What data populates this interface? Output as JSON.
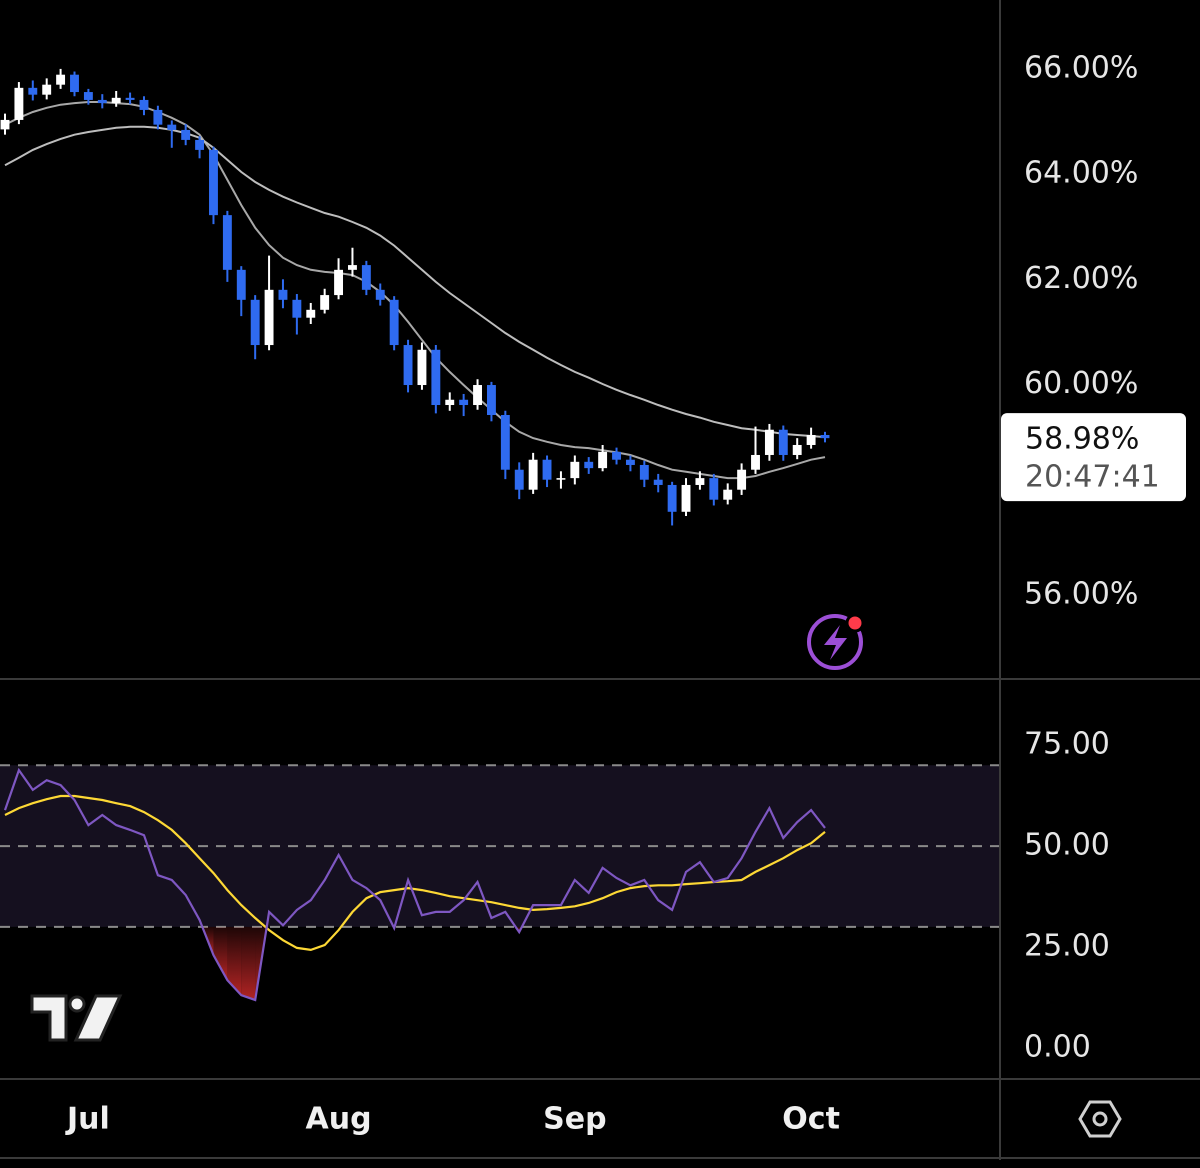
{
  "chart_data": [
    {
      "type": "candlestick",
      "categories": [
        null,
        null,
        null,
        null,
        null,
        null,
        "Jul",
        null,
        null,
        null,
        null,
        null,
        null,
        null,
        null,
        null,
        null,
        null,
        null,
        null,
        null,
        null,
        null,
        null,
        "Aug",
        null,
        null,
        null,
        null,
        null,
        null,
        null,
        null,
        null,
        null,
        null,
        null,
        null,
        null,
        null,
        null,
        "Sep",
        null,
        null,
        null,
        null,
        null,
        null,
        null,
        null,
        null,
        null,
        null,
        null,
        null,
        null,
        null,
        null,
        "Oct",
        null
      ],
      "open": [
        64.85,
        65.03,
        65.64,
        65.51,
        65.7,
        65.89,
        65.56,
        65.41,
        65.35,
        65.45,
        65.41,
        65.22,
        64.94,
        64.84,
        64.65,
        64.46,
        63.22,
        62.18,
        61.61,
        60.75,
        61.8,
        61.61,
        61.27,
        61.42,
        61.7,
        62.18,
        62.27,
        61.8,
        61.61,
        60.75,
        59.99,
        60.66,
        59.61,
        59.71,
        59.61,
        59.99,
        59.42,
        58.38,
        58.0,
        58.57,
        58.19,
        58.22,
        58.53,
        58.41,
        58.72,
        58.57,
        58.47,
        58.19,
        58.09,
        57.58,
        58.09,
        58.22,
        57.81,
        58.0,
        58.38,
        58.66,
        59.14,
        58.66,
        58.85,
        59.04
      ],
      "high": [
        65.15,
        65.75,
        65.78,
        65.82,
        66.0,
        65.95,
        65.62,
        65.52,
        65.58,
        65.55,
        65.48,
        65.3,
        65.02,
        64.95,
        64.72,
        64.52,
        63.3,
        62.25,
        61.7,
        62.45,
        62.0,
        61.72,
        61.55,
        61.82,
        62.4,
        62.6,
        62.35,
        61.92,
        61.68,
        60.85,
        60.8,
        60.75,
        59.85,
        59.82,
        60.1,
        60.05,
        59.5,
        58.52,
        58.7,
        58.65,
        58.35,
        58.65,
        58.62,
        58.85,
        58.8,
        58.65,
        58.55,
        58.3,
        58.15,
        58.22,
        58.35,
        58.3,
        58.12,
        58.5,
        59.2,
        59.25,
        59.22,
        58.98,
        59.18,
        59.1
      ],
      "low": [
        64.75,
        64.95,
        65.4,
        65.42,
        65.62,
        65.48,
        65.32,
        65.25,
        65.28,
        65.33,
        65.12,
        64.85,
        64.5,
        64.55,
        64.3,
        63.05,
        61.95,
        61.3,
        60.48,
        60.65,
        61.45,
        60.95,
        61.15,
        61.35,
        61.62,
        62.05,
        61.7,
        61.5,
        60.65,
        59.85,
        59.9,
        59.45,
        59.5,
        59.4,
        59.52,
        59.3,
        58.2,
        57.82,
        57.92,
        58.05,
        58.02,
        58.1,
        58.3,
        58.35,
        58.48,
        58.35,
        58.05,
        57.95,
        57.32,
        57.5,
        58.0,
        57.7,
        57.72,
        57.9,
        58.3,
        58.55,
        58.55,
        58.58,
        58.78,
        58.9
      ],
      "close": [
        65.03,
        65.64,
        65.51,
        65.7,
        65.89,
        65.56,
        65.41,
        65.35,
        65.45,
        65.41,
        65.22,
        64.94,
        64.84,
        64.65,
        64.46,
        63.22,
        62.18,
        61.61,
        60.75,
        61.8,
        61.61,
        61.27,
        61.42,
        61.7,
        62.18,
        62.27,
        61.8,
        61.61,
        60.75,
        59.99,
        60.66,
        59.61,
        59.71,
        59.61,
        59.99,
        59.42,
        58.38,
        58.0,
        58.57,
        58.19,
        58.22,
        58.53,
        58.41,
        58.72,
        58.57,
        58.47,
        58.19,
        58.09,
        57.58,
        58.09,
        58.22,
        57.81,
        58.0,
        58.38,
        58.66,
        59.14,
        58.66,
        58.85,
        59.04,
        58.98
      ],
      "up_color": "#ffffff",
      "down_color": "#2f6bf0",
      "overlays": [
        {
          "color": "#a8a8a8",
          "values": [
            64.94,
            65.07,
            65.18,
            65.26,
            65.32,
            65.35,
            65.37,
            65.37,
            65.35,
            65.33,
            65.28,
            65.18,
            65.07,
            64.94,
            64.75,
            64.37,
            63.89,
            63.41,
            62.98,
            62.65,
            62.41,
            62.27,
            62.18,
            62.14,
            62.12,
            62.08,
            61.95,
            61.76,
            61.51,
            61.19,
            60.85,
            60.51,
            60.24,
            59.99,
            59.75,
            59.52,
            59.29,
            59.1,
            58.98,
            58.91,
            58.85,
            58.81,
            58.79,
            58.75,
            58.71,
            58.66,
            58.57,
            58.47,
            58.38,
            58.34,
            58.3,
            58.26,
            58.22,
            58.22,
            58.26,
            58.34,
            58.41,
            58.49,
            58.57,
            58.62
          ]
        },
        {
          "color": "#bdbdbd",
          "values": [
            64.17,
            64.31,
            64.46,
            64.57,
            64.67,
            64.75,
            64.8,
            64.84,
            64.88,
            64.9,
            64.9,
            64.88,
            64.84,
            64.78,
            64.69,
            64.5,
            64.27,
            64.04,
            63.85,
            63.7,
            63.57,
            63.46,
            63.36,
            63.26,
            63.19,
            63.09,
            62.98,
            62.83,
            62.64,
            62.41,
            62.18,
            61.95,
            61.74,
            61.55,
            61.36,
            61.17,
            60.98,
            60.81,
            60.66,
            60.51,
            60.37,
            60.24,
            60.13,
            60.01,
            59.9,
            59.8,
            59.71,
            59.61,
            59.52,
            59.44,
            59.37,
            59.29,
            59.23,
            59.17,
            59.14,
            59.1,
            59.06,
            59.04,
            59.02,
            59.0
          ]
        }
      ],
      "ylim": [
        54.42,
        67.31
      ],
      "yticks": [
        {
          "value": 56,
          "label": "56.00%"
        },
        {
          "value": 60,
          "label": "60.00%"
        },
        {
          "value": 62,
          "label": "62.00%"
        },
        {
          "value": 64,
          "label": "64.00%"
        },
        {
          "value": 66,
          "label": "66.00%"
        }
      ],
      "last_price": {
        "value": 58.98,
        "label": "58.98%"
      },
      "countdown": "20:47:41"
    },
    {
      "type": "line",
      "series": [
        {
          "color": "#7e57c2",
          "values": [
            58.9,
            68.8,
            63.9,
            66.3,
            65.1,
            61.4,
            55.2,
            57.7,
            55.2,
            54.0,
            52.7,
            42.8,
            41.6,
            37.9,
            31.7,
            23.0,
            16.8,
            13.1,
            11.9,
            33.7,
            30.4,
            34.2,
            36.6,
            41.6,
            47.8,
            41.6,
            39.6,
            36.6,
            29.7,
            41.6,
            32.9,
            33.7,
            33.7,
            36.6,
            41.1,
            32.2,
            33.7,
            28.7,
            35.4,
            35.4,
            35.4,
            41.6,
            38.4,
            44.6,
            42.1,
            40.3,
            41.6,
            36.6,
            34.2,
            43.6,
            46.0,
            41.1,
            42.1,
            47.0,
            53.5,
            59.4,
            52.0,
            55.9,
            58.9,
            54.5
          ]
        },
        {
          "color": "#fdd835",
          "values": [
            57.7,
            59.4,
            60.6,
            61.6,
            62.4,
            62.4,
            61.9,
            61.4,
            60.6,
            59.9,
            58.4,
            56.4,
            54.0,
            50.7,
            47.0,
            43.3,
            39.1,
            35.4,
            32.2,
            29.2,
            26.7,
            24.8,
            24.3,
            25.5,
            29.2,
            33.7,
            37.1,
            38.6,
            39.1,
            39.6,
            39.1,
            38.4,
            37.6,
            37.1,
            36.6,
            36.1,
            35.4,
            34.7,
            34.2,
            34.4,
            34.7,
            35.1,
            35.9,
            37.1,
            38.6,
            39.6,
            40.1,
            40.3,
            40.3,
            40.6,
            40.8,
            41.1,
            41.3,
            41.6,
            43.6,
            45.3,
            47.0,
            49.0,
            50.7,
            53.5
          ]
        }
      ],
      "levels": [
        70,
        50,
        30
      ],
      "band_color": "#15101f",
      "oversold_color": "#c62828",
      "ylim": [
        -7.4,
        91.1
      ],
      "yticks": [
        {
          "value": 0,
          "label": "0.00"
        },
        {
          "value": 25,
          "label": "25.00"
        },
        {
          "value": 50,
          "label": "50.00"
        },
        {
          "value": 75,
          "label": "75.00"
        }
      ]
    }
  ]
}
